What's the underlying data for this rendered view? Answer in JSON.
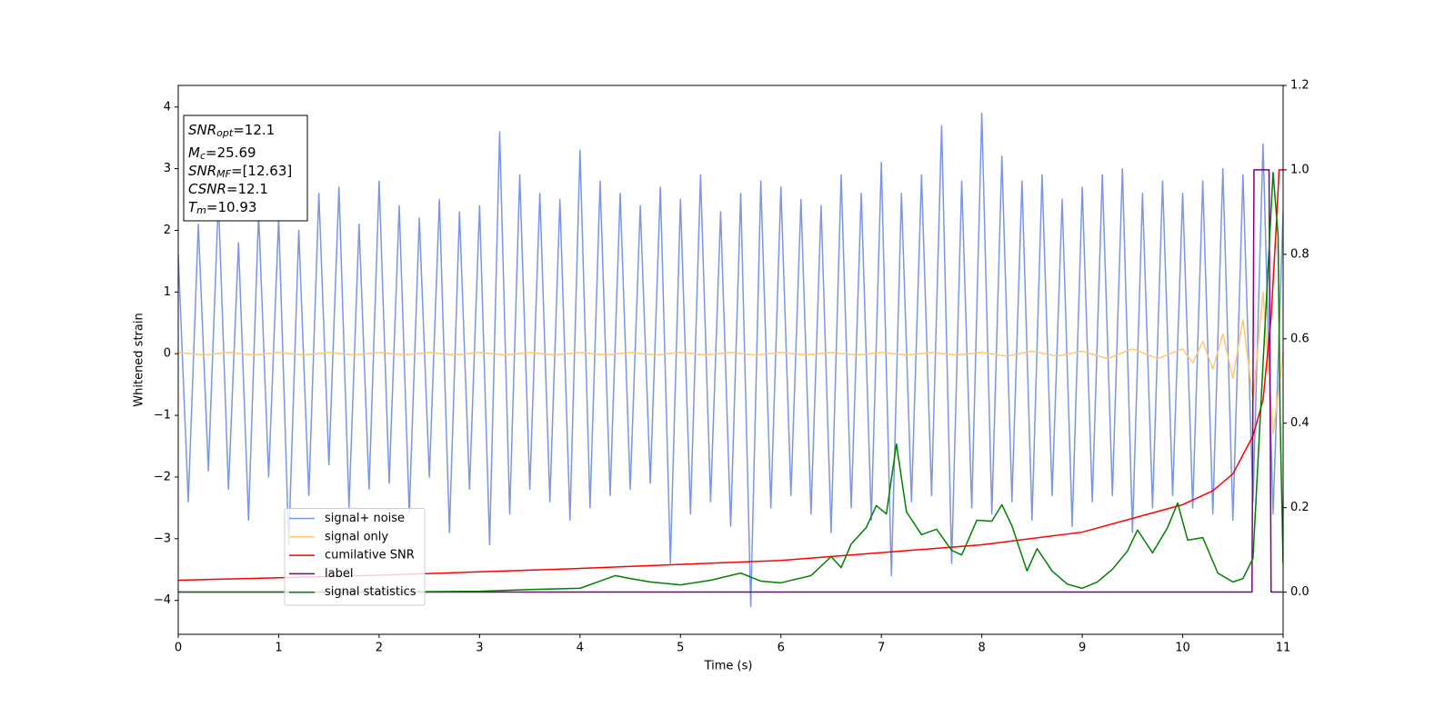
{
  "chart_data": {
    "type": "line",
    "xlabel": "Time (s)",
    "ylabel": "Whitened strain",
    "xlim": [
      0,
      11
    ],
    "xticks": [
      0,
      1,
      2,
      3,
      4,
      5,
      6,
      7,
      8,
      9,
      10,
      11
    ],
    "ylim": [
      -4.55,
      4.35
    ],
    "yticks": [
      {
        "value": -4,
        "label": "−4"
      },
      {
        "value": -3,
        "label": "−3"
      },
      {
        "value": -2,
        "label": "−2"
      },
      {
        "value": -1,
        "label": "−1"
      },
      0,
      1,
      2,
      3,
      4
    ],
    "y2lim": [
      -0.1,
      1.2
    ],
    "y2ticks": [
      {
        "value": 0,
        "label": "0.0"
      },
      0.2,
      0.4,
      0.6,
      0.8,
      {
        "value": 1,
        "label": "1.0"
      },
      1.2
    ],
    "legend_loc": "lower left",
    "annotations": [
      {
        "main": "SNR",
        "sub": "opt",
        "rest": "=12.1"
      },
      {
        "main": "M",
        "sub": "c",
        "rest": "=25.69"
      },
      {
        "main": "SNR",
        "sub": "MF",
        "rest": "=[12.63]"
      },
      {
        "main": "CSNR",
        "rest": "=12.1"
      },
      {
        "main": "T",
        "sub": "m",
        "rest": "=10.93"
      }
    ],
    "series": [
      {
        "name": "signal+ noise",
        "color": "#7b96e8",
        "x": [
          0,
          0.1,
          0.2,
          0.3,
          0.4,
          0.5,
          0.6,
          0.7,
          0.8,
          0.9,
          1,
          1.1,
          1.2,
          1.3,
          1.4,
          1.5,
          1.6,
          1.7,
          1.8,
          1.9,
          2,
          2.1,
          2.2,
          2.3,
          2.4,
          2.5,
          2.6,
          2.7,
          2.8,
          2.9,
          3,
          3.1,
          3.2,
          3.3,
          3.4,
          3.5,
          3.6,
          3.7,
          3.8,
          3.9,
          4,
          4.1,
          4.2,
          4.3,
          4.4,
          4.5,
          4.6,
          4.7,
          4.8,
          4.9,
          5,
          5.1,
          5.2,
          5.3,
          5.4,
          5.5,
          5.6,
          5.7,
          5.8,
          5.9,
          6,
          6.1,
          6.2,
          6.3,
          6.4,
          6.5,
          6.6,
          6.7,
          6.8,
          6.9,
          7,
          7.1,
          7.2,
          7.3,
          7.4,
          7.5,
          7.6,
          7.7,
          7.8,
          7.9,
          8,
          8.1,
          8.2,
          8.3,
          8.4,
          8.5,
          8.6,
          8.7,
          8.8,
          8.9,
          9,
          9.1,
          9.2,
          9.3,
          9.4,
          9.5,
          9.6,
          9.7,
          9.8,
          9.9,
          10,
          10.1,
          10.2,
          10.3,
          10.4,
          10.5,
          10.6,
          10.7,
          10.8,
          10.9,
          11
        ],
        "values": [
          1.6,
          -2.4,
          2.1,
          -1.9,
          2.5,
          -2.2,
          1.8,
          -2.7,
          2.3,
          -2.0,
          2.2,
          -3.1,
          2.0,
          -2.3,
          2.6,
          -1.8,
          2.7,
          -2.5,
          2.1,
          -2.2,
          2.8,
          -2.1,
          2.4,
          -2.6,
          2.2,
          -2.0,
          2.5,
          -2.9,
          2.3,
          -2.2,
          2.4,
          -3.1,
          3.6,
          -2.6,
          2.9,
          -2.2,
          2.6,
          -2.4,
          2.5,
          -2.7,
          3.3,
          -2.5,
          2.8,
          -2.3,
          2.6,
          -2.2,
          2.4,
          -2.1,
          2.7,
          -3.4,
          2.5,
          -2.6,
          2.9,
          -2.4,
          2.3,
          -2.8,
          2.6,
          -4.1,
          2.8,
          -2.5,
          2.7,
          -2.3,
          2.5,
          -2.6,
          2.4,
          -2.9,
          2.9,
          -2.5,
          2.6,
          -2.7,
          3.1,
          -3.6,
          2.6,
          -2.4,
          2.9,
          -2.3,
          3.7,
          -3.4,
          2.8,
          -2.5,
          3.9,
          -2.6,
          3.2,
          -2.4,
          2.8,
          -2.7,
          2.9,
          -2.3,
          2.5,
          -2.8,
          2.7,
          -2.4,
          2.9,
          -2.3,
          3.0,
          -2.9,
          2.6,
          -2.5,
          2.8,
          -2.3,
          2.6,
          -2.5,
          2.8,
          -2.6,
          3.0,
          -2.7,
          2.9,
          -2.4,
          3.4,
          -2.6,
          2.3
        ]
      },
      {
        "name": "signal only",
        "color": "#ffc870",
        "x": [
          0,
          0.25,
          0.5,
          0.75,
          1,
          1.25,
          1.5,
          1.75,
          2,
          2.25,
          2.5,
          2.75,
          3,
          3.25,
          3.5,
          3.75,
          4,
          4.25,
          4.5,
          4.75,
          5,
          5.25,
          5.5,
          5.75,
          6,
          6.25,
          6.5,
          6.75,
          7,
          7.25,
          7.5,
          7.75,
          8,
          8.25,
          8.5,
          8.75,
          9,
          9.25,
          9.5,
          9.75,
          10,
          10.1,
          10.2,
          10.3,
          10.4,
          10.5,
          10.6,
          10.7,
          10.8,
          10.9,
          11
        ],
        "values": [
          0.02,
          -0.02,
          0.02,
          -0.02,
          0.02,
          -0.02,
          0.02,
          -0.02,
          0.02,
          -0.02,
          0.02,
          -0.02,
          0.02,
          -0.02,
          0.02,
          -0.02,
          0.02,
          -0.02,
          0.02,
          -0.02,
          0.02,
          -0.02,
          0.02,
          -0.02,
          0.02,
          -0.02,
          0.02,
          -0.02,
          0.02,
          -0.02,
          0.02,
          -0.02,
          0.02,
          -0.04,
          0.04,
          -0.04,
          0.04,
          -0.08,
          0.08,
          -0.08,
          0.08,
          -0.15,
          0.2,
          -0.25,
          0.32,
          -0.4,
          0.55,
          -0.75,
          1.0,
          -1.3,
          0
        ]
      },
      {
        "name": "cumilative SNR",
        "color": "#ff0000",
        "axis": "y2",
        "x": [
          0,
          2,
          4,
          6,
          8,
          9,
          10,
          10.3,
          10.5,
          10.7,
          10.8,
          10.88,
          10.93,
          10.96,
          11
        ],
        "values": [
          0.028,
          0.04,
          0.056,
          0.075,
          0.112,
          0.142,
          0.207,
          0.24,
          0.28,
          0.37,
          0.455,
          0.65,
          0.86,
          1.0,
          1.0
        ]
      },
      {
        "name": "label",
        "color": "#800080",
        "axis": "y2",
        "x": [
          0,
          10.69,
          10.71,
          10.86,
          10.88,
          11
        ],
        "values": [
          0,
          0,
          1,
          1,
          0,
          0
        ]
      },
      {
        "name": "signal statistics",
        "color": "#008000",
        "axis": "y2",
        "x": [
          0,
          1,
          2,
          3,
          3.5,
          4,
          4.2,
          4.35,
          4.5,
          4.7,
          5,
          5.3,
          5.6,
          5.8,
          6,
          6.3,
          6.5,
          6.6,
          6.7,
          6.85,
          6.95,
          7.05,
          7.15,
          7.25,
          7.4,
          7.55,
          7.7,
          7.8,
          7.95,
          8.1,
          8.2,
          8.3,
          8.45,
          8.55,
          8.7,
          8.85,
          9,
          9.15,
          9.3,
          9.45,
          9.55,
          9.7,
          9.85,
          9.95,
          10.05,
          10.2,
          10.35,
          10.5,
          10.6,
          10.7,
          10.8,
          10.9,
          10.95,
          10.97,
          11
        ],
        "values": [
          0,
          0,
          0,
          0.002,
          0.006,
          0.009,
          0.026,
          0.039,
          0.032,
          0.024,
          0.017,
          0.028,
          0.045,
          0.026,
          0.022,
          0.039,
          0.084,
          0.058,
          0.114,
          0.153,
          0.205,
          0.185,
          0.351,
          0.19,
          0.136,
          0.149,
          0.099,
          0.088,
          0.17,
          0.168,
          0.207,
          0.157,
          0.05,
          0.103,
          0.05,
          0.019,
          0.009,
          0.024,
          0.054,
          0.097,
          0.147,
          0.093,
          0.153,
          0.211,
          0.123,
          0.129,
          0.045,
          0.024,
          0.032,
          0.08,
          0.541,
          0.994,
          0.843,
          0.412,
          0.067
        ]
      }
    ]
  }
}
